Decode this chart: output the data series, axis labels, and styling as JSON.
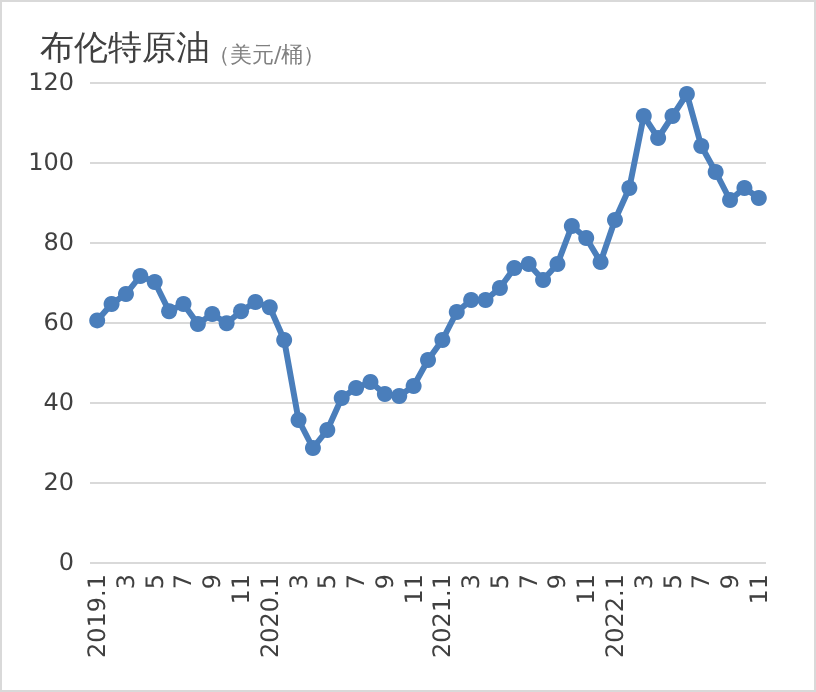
{
  "chart_data": {
    "type": "line",
    "title": "布伦特原油",
    "subtitle": "（美元/桶）",
    "categories": [
      "2019.1",
      null,
      "3",
      null,
      "5",
      null,
      "7",
      null,
      "9",
      null,
      "11",
      null,
      "2020.1",
      null,
      "3",
      null,
      "5",
      null,
      "7",
      null,
      "9",
      null,
      "11",
      null,
      "2021.1",
      null,
      "3",
      null,
      "5",
      null,
      "7",
      null,
      "9",
      null,
      "11",
      null,
      "2022.1",
      null,
      "3",
      null,
      "5",
      null,
      "7",
      null,
      "9",
      null,
      "11"
    ],
    "series": [
      {
        "color": "#4a7ebb",
        "values": [
          60.4,
          64.5,
          67,
          71.5,
          70,
          62.7,
          64.5,
          59.5,
          62,
          59.7,
          62.7,
          65,
          63.7,
          55.5,
          35.5,
          28.5,
          33,
          41,
          43.5,
          45,
          42,
          41.5,
          44,
          50.5,
          55.5,
          62.5,
          65.5,
          65.5,
          68.5,
          73.5,
          74.5,
          70.5,
          74.5,
          84,
          81,
          75,
          85.5,
          93.5,
          111.5,
          106,
          111.5,
          117,
          104,
          97.5,
          90.5,
          93.5,
          91
        ]
      }
    ],
    "ylim": [
      0,
      120
    ],
    "yticks": [
      0,
      20,
      40,
      60,
      80,
      100,
      120
    ],
    "grid": "y",
    "marker": "circle",
    "line_style": "solid"
  }
}
